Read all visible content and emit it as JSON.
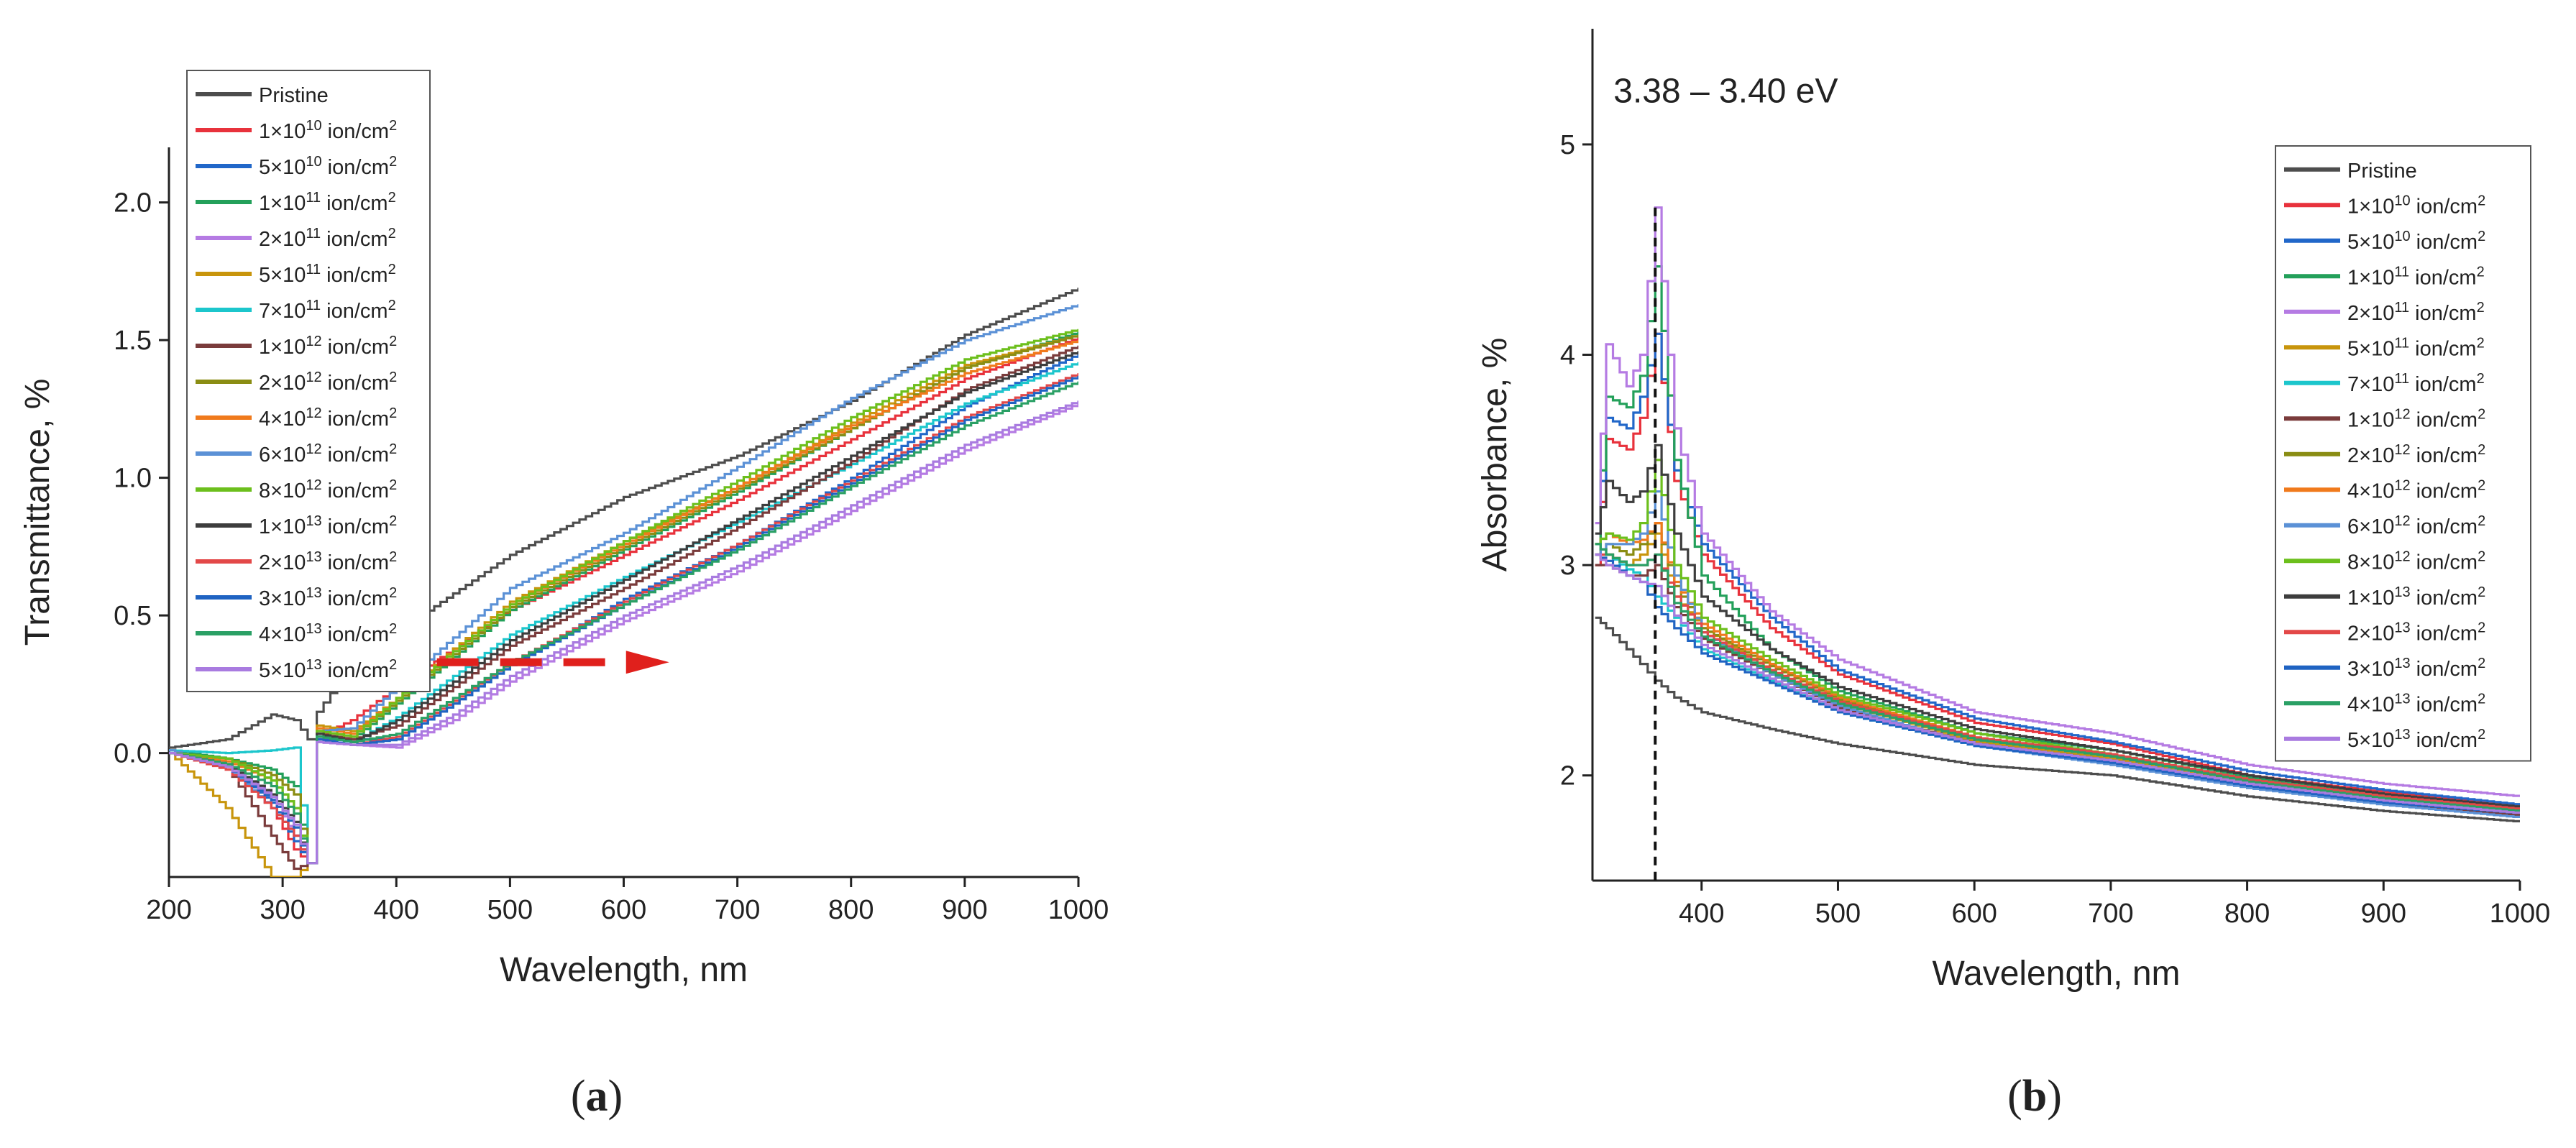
{
  "legend_entries": [
    {
      "label": "Pristine",
      "base": "",
      "exp": "",
      "unit": "",
      "color": "#4d4d4d"
    },
    {
      "label": "",
      "base": "1×10",
      "exp": "10",
      "unit": " ion/cm",
      "color": "#e8323c"
    },
    {
      "label": "",
      "base": "5×10",
      "exp": "10",
      "unit": " ion/cm",
      "color": "#2167c9"
    },
    {
      "label": "",
      "base": "1×10",
      "exp": "11",
      "unit": " ion/cm",
      "color": "#23a05a"
    },
    {
      "label": "",
      "base": "2×10",
      "exp": "11",
      "unit": " ion/cm",
      "color": "#b57be3"
    },
    {
      "label": "",
      "base": "5×10",
      "exp": "11",
      "unit": " ion/cm",
      "color": "#c8950c"
    },
    {
      "label": "",
      "base": "7×10",
      "exp": "11",
      "unit": " ion/cm",
      "color": "#1cc6cc"
    },
    {
      "label": "",
      "base": "1×10",
      "exp": "12",
      "unit": " ion/cm",
      "color": "#7a3b3b"
    },
    {
      "label": "",
      "base": "2×10",
      "exp": "12",
      "unit": " ion/cm",
      "color": "#8a8d13"
    },
    {
      "label": "",
      "base": "4×10",
      "exp": "12",
      "unit": " ion/cm",
      "color": "#f07a1c"
    },
    {
      "label": "",
      "base": "6×10",
      "exp": "12",
      "unit": " ion/cm",
      "color": "#5b91d6"
    },
    {
      "label": "",
      "base": "8×10",
      "exp": "12",
      "unit": " ion/cm",
      "color": "#6cbf1c"
    },
    {
      "label": "",
      "base": "1×10",
      "exp": "13",
      "unit": " ion/cm",
      "color": "#3d3d3d"
    },
    {
      "label": "",
      "base": "2×10",
      "exp": "13",
      "unit": " ion/cm",
      "color": "#e34848"
    },
    {
      "label": "",
      "base": "3×10",
      "exp": "13",
      "unit": " ion/cm",
      "color": "#1f63c2"
    },
    {
      "label": "",
      "base": "4×10",
      "exp": "13",
      "unit": " ion/cm",
      "color": "#2aa065"
    },
    {
      "label": "",
      "base": "5×10",
      "exp": "13",
      "unit": " ion/cm",
      "color": "#a97be0"
    }
  ],
  "legend_unit_sup": "2",
  "chart_data": [
    {
      "panel_label": "a",
      "type": "line",
      "xlabel": "Wavelength, nm",
      "ylabel": "Transmittance, %",
      "xlim": [
        200,
        1000
      ],
      "ylim": [
        -0.45,
        2.2
      ],
      "xticks": [
        200,
        300,
        400,
        500,
        600,
        700,
        800,
        900,
        1000
      ],
      "xtick_labels": [
        "200",
        "300",
        "400",
        "500",
        "600",
        "700",
        "800",
        "900",
        "1000"
      ],
      "yticks": [
        0.0,
        0.5,
        1.0,
        1.5,
        2.0
      ],
      "ytick_labels": [
        "0.0",
        "0.5",
        "1.0",
        "1.5",
        "2.0"
      ],
      "legend_position": "top-left",
      "annotation": {
        "type": "arrow",
        "from": [
          380,
          0.33
        ],
        "to": [
          640,
          0.33
        ],
        "color": "#e0201c",
        "style": "dashed"
      },
      "x": [
        200,
        250,
        290,
        310,
        322,
        330,
        360,
        400,
        450,
        500,
        600,
        700,
        800,
        900,
        1000
      ],
      "series": [
        {
          "name": "Pristine",
          "values": [
            0.02,
            0.05,
            0.14,
            0.12,
            0.05,
            0.15,
            0.32,
            0.44,
            0.58,
            0.72,
            0.93,
            1.08,
            1.28,
            1.52,
            1.69
          ]
        },
        {
          "name": "1×10^10 ion/cm^2",
          "values": [
            0.0,
            -0.05,
            -0.2,
            -0.35,
            -0.4,
            0.06,
            0.12,
            0.24,
            0.38,
            0.52,
            0.72,
            0.92,
            1.14,
            1.36,
            1.51
          ]
        },
        {
          "name": "5×10^10 ion/cm^2",
          "values": [
            0.0,
            -0.05,
            -0.18,
            -0.32,
            -0.4,
            0.05,
            0.05,
            0.05,
            0.18,
            0.32,
            0.56,
            0.76,
            1.0,
            1.26,
            1.45
          ]
        },
        {
          "name": "1×10^11 ion/cm^2",
          "values": [
            0.01,
            -0.02,
            -0.06,
            -0.12,
            -0.4,
            0.07,
            0.05,
            0.18,
            0.35,
            0.52,
            0.74,
            0.95,
            1.18,
            1.4,
            1.53
          ]
        },
        {
          "name": "2×10^11 ion/cm^2",
          "values": [
            0.0,
            -0.04,
            -0.16,
            -0.3,
            -0.4,
            0.04,
            0.03,
            0.02,
            0.12,
            0.26,
            0.48,
            0.66,
            0.88,
            1.1,
            1.27
          ]
        },
        {
          "name": "5×10^11 ion/cm^2",
          "values": [
            0.0,
            -0.2,
            -0.45,
            -0.45,
            -0.4,
            0.1,
            0.08,
            0.2,
            0.38,
            0.55,
            0.77,
            0.97,
            1.2,
            1.41,
            1.52
          ]
        },
        {
          "name": "7×10^11 ion/cm^2",
          "values": [
            0.01,
            0.0,
            0.01,
            0.02,
            -0.4,
            0.06,
            0.04,
            0.13,
            0.28,
            0.43,
            0.64,
            0.84,
            1.05,
            1.27,
            1.42
          ]
        },
        {
          "name": "1×10^12 ion/cm^2",
          "values": [
            0.0,
            -0.05,
            -0.3,
            -0.42,
            -0.4,
            0.07,
            0.05,
            0.1,
            0.24,
            0.39,
            0.6,
            0.82,
            1.06,
            1.32,
            1.48
          ]
        },
        {
          "name": "2×10^12 ion/cm^2",
          "values": [
            0.0,
            -0.02,
            -0.08,
            -0.15,
            -0.4,
            0.08,
            0.06,
            0.19,
            0.36,
            0.53,
            0.75,
            0.96,
            1.18,
            1.4,
            1.52
          ]
        },
        {
          "name": "4×10^12 ion/cm^2",
          "values": [
            0.0,
            -0.03,
            -0.1,
            -0.2,
            -0.4,
            0.09,
            0.07,
            0.2,
            0.37,
            0.54,
            0.76,
            0.97,
            1.19,
            1.38,
            1.5
          ]
        },
        {
          "name": "6×10^12 ion/cm^2",
          "values": [
            0.01,
            -0.05,
            -0.2,
            -0.3,
            -0.4,
            0.08,
            0.09,
            0.24,
            0.42,
            0.6,
            0.8,
            1.04,
            1.29,
            1.5,
            1.63
          ]
        },
        {
          "name": "8×10^12 ion/cm^2",
          "values": [
            0.0,
            -0.02,
            -0.1,
            -0.2,
            -0.4,
            0.08,
            0.06,
            0.2,
            0.37,
            0.54,
            0.77,
            0.99,
            1.22,
            1.43,
            1.54
          ]
        },
        {
          "name": "1×10^13 ion/cm^2",
          "values": [
            0.0,
            -0.04,
            -0.15,
            -0.25,
            -0.4,
            0.07,
            0.04,
            0.12,
            0.26,
            0.41,
            0.63,
            0.85,
            1.08,
            1.31,
            1.46
          ]
        },
        {
          "name": "2×10^13 ion/cm^2",
          "values": [
            0.0,
            -0.06,
            -0.2,
            -0.3,
            -0.4,
            0.05,
            0.03,
            0.06,
            0.19,
            0.33,
            0.55,
            0.76,
            0.99,
            1.22,
            1.38
          ]
        },
        {
          "name": "3×10^13 ion/cm^2",
          "values": [
            0.0,
            -0.05,
            -0.17,
            -0.27,
            -0.4,
            0.05,
            0.03,
            0.05,
            0.18,
            0.32,
            0.54,
            0.75,
            0.98,
            1.21,
            1.37
          ]
        },
        {
          "name": "4×10^13 ion/cm^2",
          "values": [
            0.0,
            -0.04,
            -0.12,
            -0.22,
            -0.4,
            0.06,
            0.04,
            0.07,
            0.2,
            0.33,
            0.54,
            0.74,
            0.97,
            1.19,
            1.35
          ]
        },
        {
          "name": "5×10^13 ion/cm^2",
          "values": [
            0.0,
            -0.05,
            -0.16,
            -0.26,
            -0.4,
            0.04,
            0.03,
            0.03,
            0.14,
            0.28,
            0.5,
            0.68,
            0.9,
            1.12,
            1.28
          ]
        }
      ]
    },
    {
      "panel_label": "b",
      "type": "line",
      "xlabel": "Wavelength, nm",
      "ylabel": "Absorbance, %",
      "xlim": [
        320,
        1000
      ],
      "ylim": [
        1.5,
        5.55
      ],
      "xticks": [
        400,
        500,
        600,
        700,
        800,
        900,
        1000
      ],
      "xtick_labels": [
        "400",
        "500",
        "600",
        "700",
        "800",
        "900",
        "1000"
      ],
      "yticks": [
        2,
        3,
        4,
        5
      ],
      "ytick_labels": [
        "2",
        "3",
        "4",
        "5"
      ],
      "legend_position": "right",
      "annotation": {
        "text": "3.38 – 3.40 eV",
        "x": 366,
        "anchor_y": 5.2,
        "vline_x": 366
      },
      "x": [
        322,
        330,
        345,
        355,
        366,
        380,
        400,
        450,
        500,
        600,
        700,
        800,
        900,
        1000
      ],
      "series": [
        {
          "name": "Pristine",
          "values": [
            2.75,
            2.7,
            2.6,
            2.53,
            2.45,
            2.37,
            2.3,
            2.22,
            2.15,
            2.05,
            2.0,
            1.9,
            1.83,
            1.78
          ]
        },
        {
          "name": "1×10^10 ion/cm^2",
          "values": [
            3.0,
            3.6,
            3.55,
            3.7,
            4.1,
            3.4,
            3.05,
            2.7,
            2.48,
            2.25,
            2.15,
            2.0,
            1.92,
            1.85
          ]
        },
        {
          "name": "5×10^10 ion/cm^2",
          "values": [
            3.1,
            3.7,
            3.65,
            3.8,
            4.1,
            3.45,
            3.1,
            2.75,
            2.5,
            2.27,
            2.16,
            2.02,
            1.93,
            1.86
          ]
        },
        {
          "name": "1×10^11 ion/cm^2",
          "values": [
            3.1,
            3.8,
            3.75,
            3.9,
            4.42,
            3.5,
            2.95,
            2.6,
            2.4,
            2.2,
            2.12,
            1.99,
            1.91,
            1.84
          ]
        },
        {
          "name": "2×10^11 ion/cm^2",
          "values": [
            3.2,
            4.05,
            3.85,
            4.0,
            4.7,
            3.65,
            3.15,
            2.78,
            2.55,
            2.3,
            2.2,
            2.05,
            1.96,
            1.9
          ]
        },
        {
          "name": "5×10^11 ion/cm^2",
          "values": [
            3.1,
            3.05,
            3.0,
            3.05,
            3.15,
            2.85,
            2.7,
            2.5,
            2.34,
            2.16,
            2.08,
            1.96,
            1.88,
            1.82
          ]
        },
        {
          "name": "7×10^11 ion/cm^2",
          "values": [
            3.1,
            3.05,
            2.98,
            2.95,
            2.85,
            2.75,
            2.6,
            2.45,
            2.3,
            2.14,
            2.06,
            1.95,
            1.87,
            1.81
          ]
        },
        {
          "name": "1×10^12 ion/cm^2",
          "values": [
            3.0,
            3.0,
            2.95,
            2.95,
            3.0,
            2.8,
            2.65,
            2.48,
            2.32,
            2.15,
            2.07,
            1.95,
            1.87,
            1.81
          ]
        },
        {
          "name": "2×10^12 ion/cm^2",
          "values": [
            3.05,
            3.1,
            3.05,
            3.1,
            3.2,
            2.9,
            2.7,
            2.52,
            2.36,
            2.18,
            2.09,
            1.97,
            1.89,
            1.83
          ]
        },
        {
          "name": "4×10^12 ion/cm^2",
          "values": [
            3.1,
            3.15,
            3.1,
            3.12,
            3.2,
            2.92,
            2.72,
            2.53,
            2.37,
            2.18,
            2.09,
            1.97,
            1.89,
            1.83
          ]
        },
        {
          "name": "6×10^12 ion/cm^2",
          "values": [
            3.05,
            3.1,
            3.1,
            3.15,
            3.35,
            2.95,
            2.68,
            2.48,
            2.33,
            2.14,
            2.05,
            1.94,
            1.86,
            1.8
          ]
        },
        {
          "name": "8×10^12 ion/cm^2",
          "values": [
            3.1,
            3.15,
            3.12,
            3.2,
            3.5,
            3.0,
            2.75,
            2.55,
            2.38,
            2.2,
            2.1,
            1.98,
            1.9,
            1.84
          ]
        },
        {
          "name": "1×10^13 ion/cm^2",
          "values": [
            3.15,
            3.4,
            3.3,
            3.35,
            3.57,
            3.15,
            2.85,
            2.6,
            2.42,
            2.22,
            2.12,
            2.0,
            1.91,
            1.85
          ]
        },
        {
          "name": "2×10^13 ion/cm^2",
          "values": [
            3.05,
            3.05,
            3.0,
            3.0,
            3.05,
            2.85,
            2.68,
            2.5,
            2.35,
            2.18,
            2.1,
            1.98,
            1.9,
            1.84
          ]
        },
        {
          "name": "3×10^13 ion/cm^2",
          "values": [
            3.05,
            3.02,
            2.95,
            2.92,
            2.8,
            2.7,
            2.58,
            2.44,
            2.3,
            2.14,
            2.06,
            1.95,
            1.87,
            1.82
          ]
        },
        {
          "name": "4×10^13 ion/cm^2",
          "values": [
            3.1,
            3.05,
            3.0,
            3.0,
            3.05,
            2.82,
            2.66,
            2.49,
            2.34,
            2.17,
            2.09,
            1.97,
            1.89,
            1.83
          ]
        },
        {
          "name": "5×10^13 ion/cm^2",
          "values": [
            3.05,
            3.0,
            2.95,
            2.92,
            2.9,
            2.76,
            2.62,
            2.46,
            2.31,
            2.15,
            2.07,
            1.96,
            1.88,
            1.82
          ]
        }
      ]
    }
  ]
}
